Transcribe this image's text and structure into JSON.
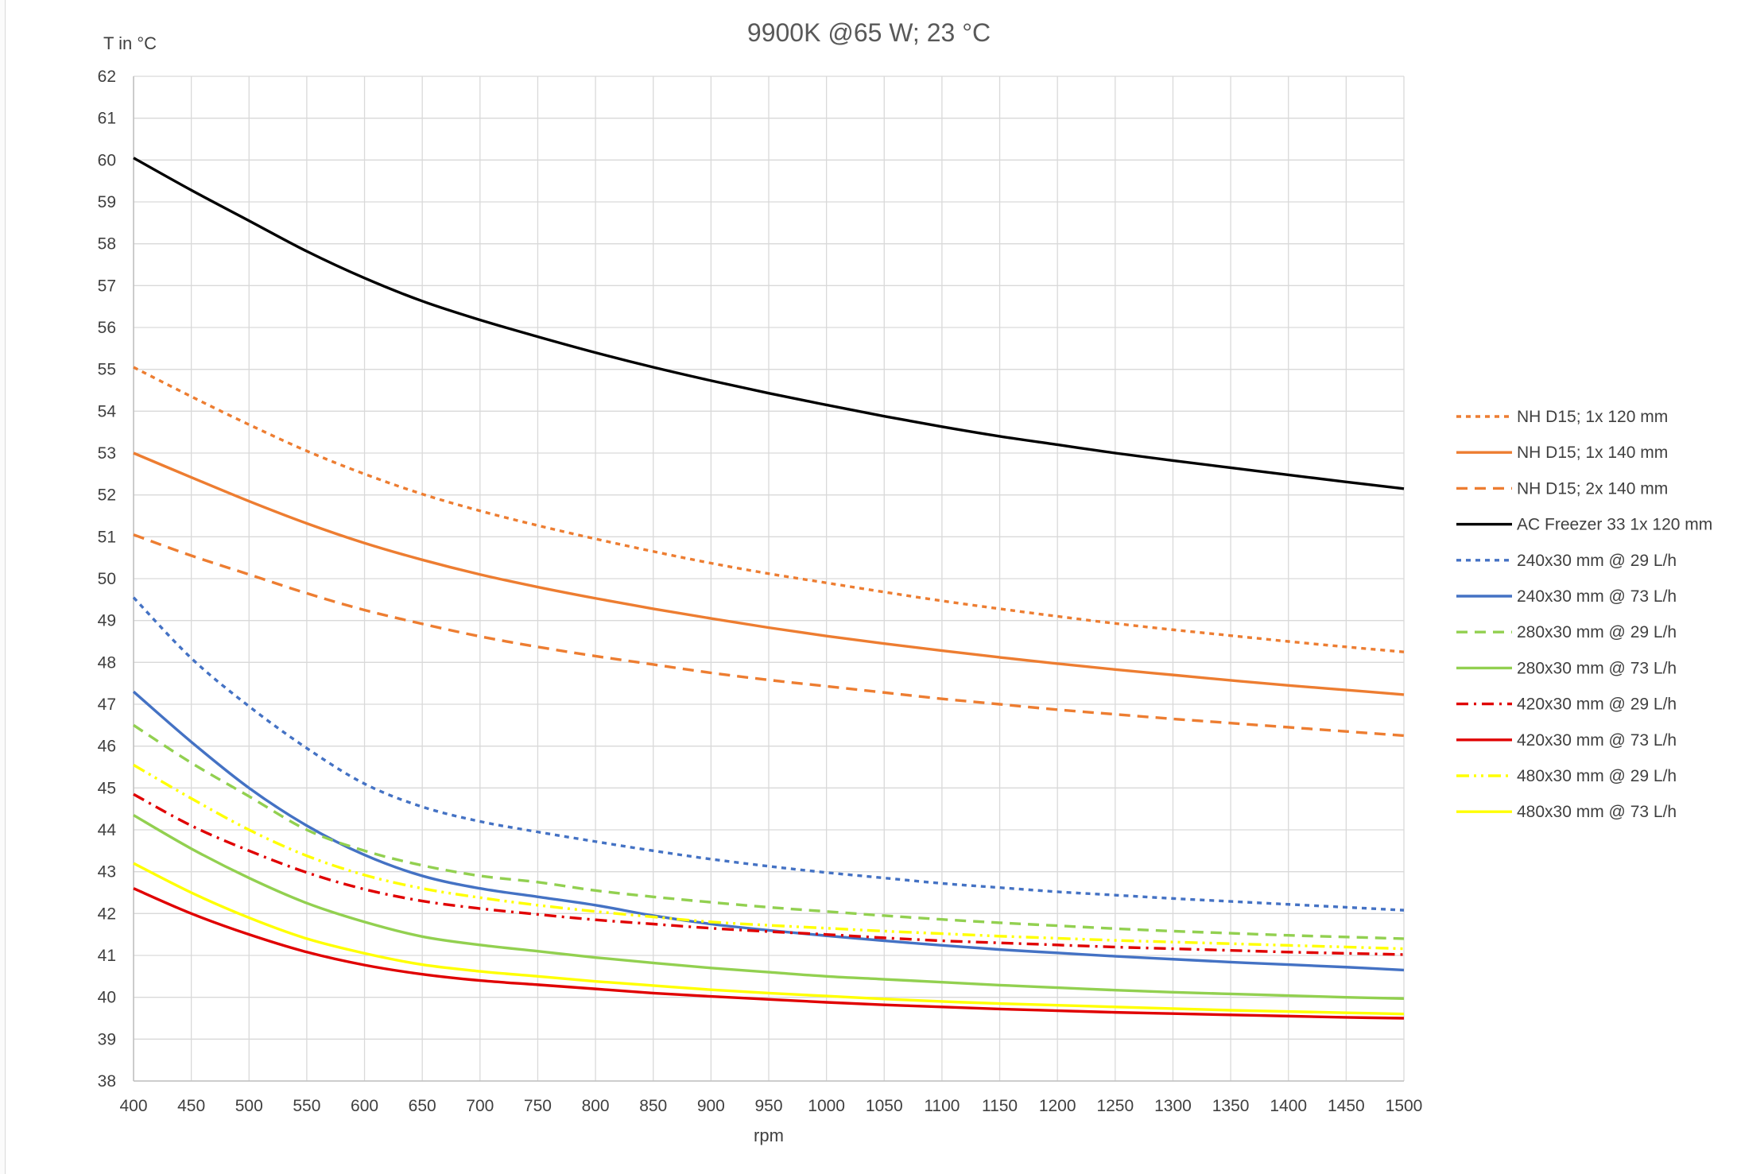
{
  "chart_data": {
    "type": "line",
    "title": "9900K @65 W; 23 °C",
    "xlabel": "rpm",
    "ylabel": "T in °C",
    "xlim": [
      400,
      1500
    ],
    "ylim": [
      38,
      62
    ],
    "x_ticks": [
      400,
      450,
      500,
      550,
      600,
      650,
      700,
      750,
      800,
      850,
      900,
      950,
      1000,
      1050,
      1100,
      1150,
      1200,
      1250,
      1300,
      1350,
      1400,
      1450,
      1500
    ],
    "y_ticks": [
      38,
      39,
      40,
      41,
      42,
      43,
      44,
      45,
      46,
      47,
      48,
      49,
      50,
      51,
      52,
      53,
      54,
      55,
      56,
      57,
      58,
      59,
      60,
      61,
      62
    ],
    "grid": true,
    "legend_position": "right",
    "x": [
      400,
      450,
      500,
      550,
      600,
      650,
      700,
      750,
      800,
      850,
      900,
      950,
      1000,
      1050,
      1100,
      1150,
      1200,
      1250,
      1300,
      1350,
      1400,
      1450,
      1500
    ],
    "series": [
      {
        "name": "NH D15; 1x 120 mm",
        "color": "#ED7D31",
        "dash": "dot",
        "values": [
          55.05,
          54.35,
          53.68,
          53.05,
          52.5,
          52.02,
          51.62,
          51.27,
          50.95,
          50.65,
          50.37,
          50.12,
          49.9,
          49.68,
          49.47,
          49.28,
          49.1,
          48.93,
          48.78,
          48.64,
          48.5,
          48.37,
          48.25
        ]
      },
      {
        "name": "NH D15; 1x 140 mm",
        "color": "#ED7D31",
        "dash": "solid",
        "values": [
          53.0,
          52.42,
          51.85,
          51.32,
          50.85,
          50.45,
          50.1,
          49.8,
          49.53,
          49.28,
          49.05,
          48.83,
          48.63,
          48.45,
          48.28,
          48.12,
          47.97,
          47.83,
          47.7,
          47.57,
          47.45,
          47.34,
          47.23
        ]
      },
      {
        "name": "NH D15; 2x 140 mm",
        "color": "#ED7D31",
        "dash": "dash",
        "values": [
          51.05,
          50.55,
          50.1,
          49.65,
          49.25,
          48.92,
          48.62,
          48.37,
          48.15,
          47.95,
          47.75,
          47.58,
          47.43,
          47.28,
          47.13,
          47.0,
          46.87,
          46.76,
          46.65,
          46.55,
          46.45,
          46.35,
          46.25
        ]
      },
      {
        "name": "AC Freezer 33 1x 120 mm",
        "color": "#000000",
        "dash": "solid",
        "values": [
          60.05,
          59.28,
          58.55,
          57.82,
          57.18,
          56.63,
          56.18,
          55.78,
          55.4,
          55.05,
          54.73,
          54.43,
          54.15,
          53.88,
          53.63,
          53.4,
          53.2,
          53.0,
          52.82,
          52.65,
          52.48,
          52.31,
          52.15
        ]
      },
      {
        "name": "240x30 mm @ 29 L/h",
        "color": "#4472C4",
        "dash": "dot",
        "values": [
          49.55,
          48.1,
          46.95,
          45.95,
          45.1,
          44.55,
          44.2,
          43.95,
          43.72,
          43.5,
          43.3,
          43.13,
          42.98,
          42.85,
          42.72,
          42.62,
          42.52,
          42.44,
          42.36,
          42.29,
          42.22,
          42.15,
          42.08
        ]
      },
      {
        "name": "240x30 mm @ 73 L/h",
        "color": "#4472C4",
        "dash": "solid",
        "values": [
          47.3,
          46.1,
          45.0,
          44.1,
          43.4,
          42.9,
          42.6,
          42.4,
          42.2,
          41.95,
          41.75,
          41.6,
          41.47,
          41.35,
          41.24,
          41.14,
          41.06,
          40.98,
          40.91,
          40.84,
          40.78,
          40.72,
          40.65
        ]
      },
      {
        "name": "280x30 mm @ 29 L/h",
        "color": "#92D050",
        "dash": "dash",
        "values": [
          46.5,
          45.6,
          44.8,
          44.0,
          43.5,
          43.15,
          42.9,
          42.75,
          42.55,
          42.4,
          42.27,
          42.15,
          42.05,
          41.95,
          41.86,
          41.78,
          41.71,
          41.64,
          41.58,
          41.53,
          41.48,
          41.44,
          41.4
        ]
      },
      {
        "name": "280x30 mm @ 73 L/h",
        "color": "#92D050",
        "dash": "solid",
        "values": [
          44.35,
          43.55,
          42.85,
          42.25,
          41.8,
          41.45,
          41.25,
          41.1,
          40.95,
          40.82,
          40.7,
          40.6,
          40.5,
          40.43,
          40.36,
          40.29,
          40.23,
          40.17,
          40.12,
          40.08,
          40.04,
          40.0,
          39.97
        ]
      },
      {
        "name": "420x30 mm @ 29 L/h",
        "color": "#E00000",
        "dash": "dashdot",
        "values": [
          44.85,
          44.1,
          43.5,
          42.98,
          42.58,
          42.3,
          42.12,
          41.98,
          41.85,
          41.75,
          41.65,
          41.57,
          41.5,
          41.42,
          41.35,
          41.3,
          41.25,
          41.2,
          41.16,
          41.12,
          41.08,
          41.05,
          41.02
        ]
      },
      {
        "name": "420x30 mm @ 73 L/h",
        "color": "#E00000",
        "dash": "solid",
        "values": [
          42.6,
          42.0,
          41.5,
          41.08,
          40.77,
          40.55,
          40.4,
          40.3,
          40.2,
          40.1,
          40.02,
          39.95,
          39.88,
          39.82,
          39.77,
          39.72,
          39.68,
          39.64,
          39.61,
          39.58,
          39.55,
          39.52,
          39.5
        ]
      },
      {
        "name": "480x30 mm @ 29 L/h",
        "color": "#FFFF00",
        "dash": "dashdotdot",
        "values": [
          45.55,
          44.75,
          44.0,
          43.38,
          42.92,
          42.6,
          42.38,
          42.2,
          42.05,
          41.92,
          41.8,
          41.72,
          41.65,
          41.58,
          41.52,
          41.46,
          41.41,
          41.36,
          41.32,
          41.28,
          41.24,
          41.2,
          41.16
        ]
      },
      {
        "name": "480x30 mm @ 73 L/h",
        "color": "#FFFF00",
        "dash": "solid",
        "values": [
          43.2,
          42.5,
          41.9,
          41.4,
          41.05,
          40.78,
          40.62,
          40.5,
          40.38,
          40.28,
          40.18,
          40.1,
          40.03,
          39.96,
          39.9,
          39.85,
          39.81,
          39.77,
          39.73,
          39.69,
          39.66,
          39.63,
          39.6
        ]
      }
    ]
  }
}
